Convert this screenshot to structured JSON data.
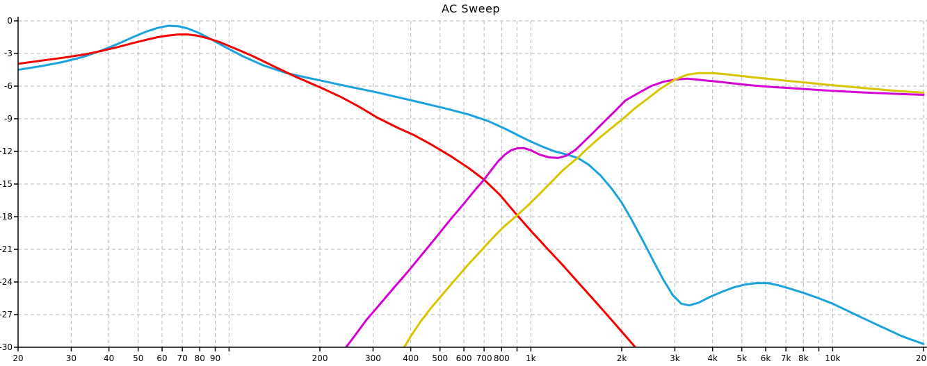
{
  "title": "AC Sweep",
  "colors": {
    "background": "#ffffff",
    "grid": "#b3b3b3",
    "axis": "#000000",
    "text": "#000000",
    "trace_cyan": "#1aa2de",
    "trace_red": "#f40000",
    "trace_magenta": "#d400d4",
    "trace_yellow": "#d9c400"
  },
  "chart_data": {
    "type": "line",
    "title": "AC Sweep",
    "xlabel": "",
    "ylabel": "",
    "legend_position": "none",
    "grid": "dashed",
    "x_axis": {
      "scale": "log",
      "min": 20,
      "max": 20000,
      "gridlines": [
        20,
        30,
        40,
        50,
        60,
        70,
        80,
        90,
        100,
        200,
        300,
        400,
        500,
        600,
        700,
        800,
        900,
        1000,
        2000,
        3000,
        4000,
        5000,
        6000,
        7000,
        8000,
        9000,
        10000,
        20000
      ],
      "ticks": [
        {
          "value": 20,
          "label": "20"
        },
        {
          "value": 30,
          "label": "30"
        },
        {
          "value": 40,
          "label": "40"
        },
        {
          "value": 50,
          "label": "50"
        },
        {
          "value": 60,
          "label": "60"
        },
        {
          "value": 70,
          "label": "70"
        },
        {
          "value": 80,
          "label": "80"
        },
        {
          "value": 90,
          "label": "90"
        },
        {
          "value": 200,
          "label": "200"
        },
        {
          "value": 300,
          "label": "300"
        },
        {
          "value": 400,
          "label": "400"
        },
        {
          "value": 500,
          "label": "500"
        },
        {
          "value": 600,
          "label": "600"
        },
        {
          "value": 700,
          "label": "700"
        },
        {
          "value": 800,
          "label": "800"
        },
        {
          "value": 1000,
          "label": "1k"
        },
        {
          "value": 2000,
          "label": "2k"
        },
        {
          "value": 3000,
          "label": "3k"
        },
        {
          "value": 4000,
          "label": "4k"
        },
        {
          "value": 5000,
          "label": "5k"
        },
        {
          "value": 6000,
          "label": "6k"
        },
        {
          "value": 7000,
          "label": "7k"
        },
        {
          "value": 8000,
          "label": "8k"
        },
        {
          "value": 10000,
          "label": "10k"
        },
        {
          "value": 20000,
          "label": "20k"
        }
      ]
    },
    "y_axis": {
      "scale": "linear",
      "min": -30,
      "max": 0,
      "step": 3,
      "ticks": [
        {
          "value": 0,
          "label": "0"
        },
        {
          "value": -3,
          "label": "-3"
        },
        {
          "value": -6,
          "label": "-6"
        },
        {
          "value": -9,
          "label": "-9"
        },
        {
          "value": -12,
          "label": "-12"
        },
        {
          "value": -15,
          "label": "-15"
        },
        {
          "value": -18,
          "label": "-18"
        },
        {
          "value": -21,
          "label": "-21"
        },
        {
          "value": -24,
          "label": "-24"
        },
        {
          "value": -27,
          "label": "-27"
        },
        {
          "value": -30,
          "label": "-30"
        }
      ]
    },
    "series": [
      {
        "name": "cyan-trace",
        "color": "#1aa2de",
        "points": [
          [
            20,
            -4.5
          ],
          [
            24,
            -4.15
          ],
          [
            28,
            -3.8
          ],
          [
            33,
            -3.3
          ],
          [
            38,
            -2.7
          ],
          [
            43,
            -2.1
          ],
          [
            48,
            -1.5
          ],
          [
            53,
            -1.0
          ],
          [
            58,
            -0.65
          ],
          [
            63,
            -0.45
          ],
          [
            68,
            -0.5
          ],
          [
            73,
            -0.7
          ],
          [
            80,
            -1.15
          ],
          [
            88,
            -1.75
          ],
          [
            97,
            -2.4
          ],
          [
            110,
            -3.2
          ],
          [
            130,
            -4.1
          ],
          [
            155,
            -4.8
          ],
          [
            180,
            -5.2
          ],
          [
            210,
            -5.6
          ],
          [
            250,
            -6.05
          ],
          [
            300,
            -6.5
          ],
          [
            360,
            -7.0
          ],
          [
            430,
            -7.5
          ],
          [
            520,
            -8.05
          ],
          [
            620,
            -8.6
          ],
          [
            720,
            -9.2
          ],
          [
            820,
            -9.9
          ],
          [
            920,
            -10.6
          ],
          [
            1000,
            -11.1
          ],
          [
            1100,
            -11.6
          ],
          [
            1200,
            -12.0
          ],
          [
            1320,
            -12.3
          ],
          [
            1430,
            -12.6
          ],
          [
            1550,
            -13.2
          ],
          [
            1700,
            -14.2
          ],
          [
            1850,
            -15.4
          ],
          [
            2000,
            -16.7
          ],
          [
            2150,
            -18.2
          ],
          [
            2350,
            -20.2
          ],
          [
            2550,
            -22.1
          ],
          [
            2750,
            -23.8
          ],
          [
            2950,
            -25.2
          ],
          [
            3150,
            -26.0
          ],
          [
            3350,
            -26.15
          ],
          [
            3600,
            -25.9
          ],
          [
            3900,
            -25.4
          ],
          [
            4300,
            -24.9
          ],
          [
            4700,
            -24.5
          ],
          [
            5100,
            -24.25
          ],
          [
            5600,
            -24.1
          ],
          [
            6100,
            -24.1
          ],
          [
            6600,
            -24.3
          ],
          [
            7200,
            -24.6
          ],
          [
            8000,
            -25.0
          ],
          [
            9000,
            -25.5
          ],
          [
            10000,
            -26.0
          ],
          [
            11500,
            -26.8
          ],
          [
            13000,
            -27.5
          ],
          [
            15000,
            -28.3
          ],
          [
            17000,
            -29.0
          ],
          [
            20000,
            -29.7
          ]
        ]
      },
      {
        "name": "red-trace",
        "color": "#f40000",
        "points": [
          [
            20,
            -3.95
          ],
          [
            24,
            -3.65
          ],
          [
            28,
            -3.4
          ],
          [
            33,
            -3.1
          ],
          [
            38,
            -2.75
          ],
          [
            43,
            -2.4
          ],
          [
            48,
            -2.05
          ],
          [
            53,
            -1.75
          ],
          [
            58,
            -1.5
          ],
          [
            63,
            -1.35
          ],
          [
            68,
            -1.25
          ],
          [
            73,
            -1.25
          ],
          [
            78,
            -1.35
          ],
          [
            85,
            -1.6
          ],
          [
            93,
            -1.95
          ],
          [
            105,
            -2.55
          ],
          [
            120,
            -3.25
          ],
          [
            140,
            -4.15
          ],
          [
            165,
            -5.1
          ],
          [
            200,
            -6.1
          ],
          [
            235,
            -7.0
          ],
          [
            270,
            -7.9
          ],
          [
            310,
            -8.9
          ],
          [
            360,
            -9.8
          ],
          [
            410,
            -10.5
          ],
          [
            470,
            -11.4
          ],
          [
            540,
            -12.4
          ],
          [
            620,
            -13.5
          ],
          [
            700,
            -14.6
          ],
          [
            790,
            -16.0
          ],
          [
            890,
            -17.7
          ],
          [
            1000,
            -19.3
          ],
          [
            1130,
            -20.9
          ],
          [
            1270,
            -22.4
          ],
          [
            1430,
            -24.0
          ],
          [
            1600,
            -25.5
          ],
          [
            1800,
            -27.1
          ],
          [
            2020,
            -28.7
          ],
          [
            2300,
            -30.5
          ]
        ]
      },
      {
        "name": "magenta-trace",
        "color": "#d400d4",
        "points": [
          [
            238,
            -30.4
          ],
          [
            260,
            -29.0
          ],
          [
            285,
            -27.5
          ],
          [
            315,
            -26.1
          ],
          [
            350,
            -24.6
          ],
          [
            390,
            -23.1
          ],
          [
            435,
            -21.5
          ],
          [
            485,
            -19.9
          ],
          [
            540,
            -18.3
          ],
          [
            600,
            -16.8
          ],
          [
            660,
            -15.4
          ],
          [
            700,
            -14.6
          ],
          [
            740,
            -13.7
          ],
          [
            780,
            -12.9
          ],
          [
            820,
            -12.3
          ],
          [
            860,
            -11.9
          ],
          [
            900,
            -11.72
          ],
          [
            950,
            -11.7
          ],
          [
            1000,
            -11.9
          ],
          [
            1070,
            -12.3
          ],
          [
            1150,
            -12.55
          ],
          [
            1230,
            -12.6
          ],
          [
            1310,
            -12.4
          ],
          [
            1400,
            -11.9
          ],
          [
            1500,
            -11.1
          ],
          [
            1620,
            -10.2
          ],
          [
            1760,
            -9.2
          ],
          [
            1900,
            -8.3
          ],
          [
            2060,
            -7.3
          ],
          [
            2250,
            -6.7
          ],
          [
            2500,
            -6.0
          ],
          [
            2750,
            -5.6
          ],
          [
            3000,
            -5.4
          ],
          [
            3300,
            -5.32
          ],
          [
            3700,
            -5.45
          ],
          [
            4200,
            -5.6
          ],
          [
            4800,
            -5.78
          ],
          [
            5500,
            -5.95
          ],
          [
            6300,
            -6.08
          ],
          [
            7200,
            -6.18
          ],
          [
            8200,
            -6.28
          ],
          [
            9500,
            -6.4
          ],
          [
            11000,
            -6.5
          ],
          [
            13000,
            -6.6
          ],
          [
            16000,
            -6.7
          ],
          [
            20000,
            -6.8
          ]
        ]
      },
      {
        "name": "yellow-trace",
        "color": "#d9c400",
        "points": [
          [
            373,
            -30.4
          ],
          [
            400,
            -29.0
          ],
          [
            432,
            -27.6
          ],
          [
            470,
            -26.3
          ],
          [
            515,
            -25.0
          ],
          [
            565,
            -23.7
          ],
          [
            620,
            -22.4
          ],
          [
            680,
            -21.2
          ],
          [
            745,
            -20.0
          ],
          [
            815,
            -18.9
          ],
          [
            890,
            -18.0
          ],
          [
            975,
            -17.0
          ],
          [
            1070,
            -15.9
          ],
          [
            1170,
            -14.8
          ],
          [
            1280,
            -13.7
          ],
          [
            1400,
            -12.8
          ],
          [
            1430,
            -12.6
          ],
          [
            1530,
            -11.8
          ],
          [
            1680,
            -10.8
          ],
          [
            1840,
            -9.9
          ],
          [
            2020,
            -9.0
          ],
          [
            2220,
            -8.0
          ],
          [
            2450,
            -7.1
          ],
          [
            2700,
            -6.2
          ],
          [
            3000,
            -5.4
          ],
          [
            3300,
            -4.95
          ],
          [
            3600,
            -4.8
          ],
          [
            4000,
            -4.8
          ],
          [
            4400,
            -4.9
          ],
          [
            4900,
            -5.05
          ],
          [
            5500,
            -5.2
          ],
          [
            6200,
            -5.35
          ],
          [
            7000,
            -5.5
          ],
          [
            8000,
            -5.65
          ],
          [
            9200,
            -5.82
          ],
          [
            10500,
            -5.97
          ],
          [
            12000,
            -6.12
          ],
          [
            14000,
            -6.28
          ],
          [
            16500,
            -6.45
          ],
          [
            20000,
            -6.6
          ]
        ]
      }
    ]
  }
}
